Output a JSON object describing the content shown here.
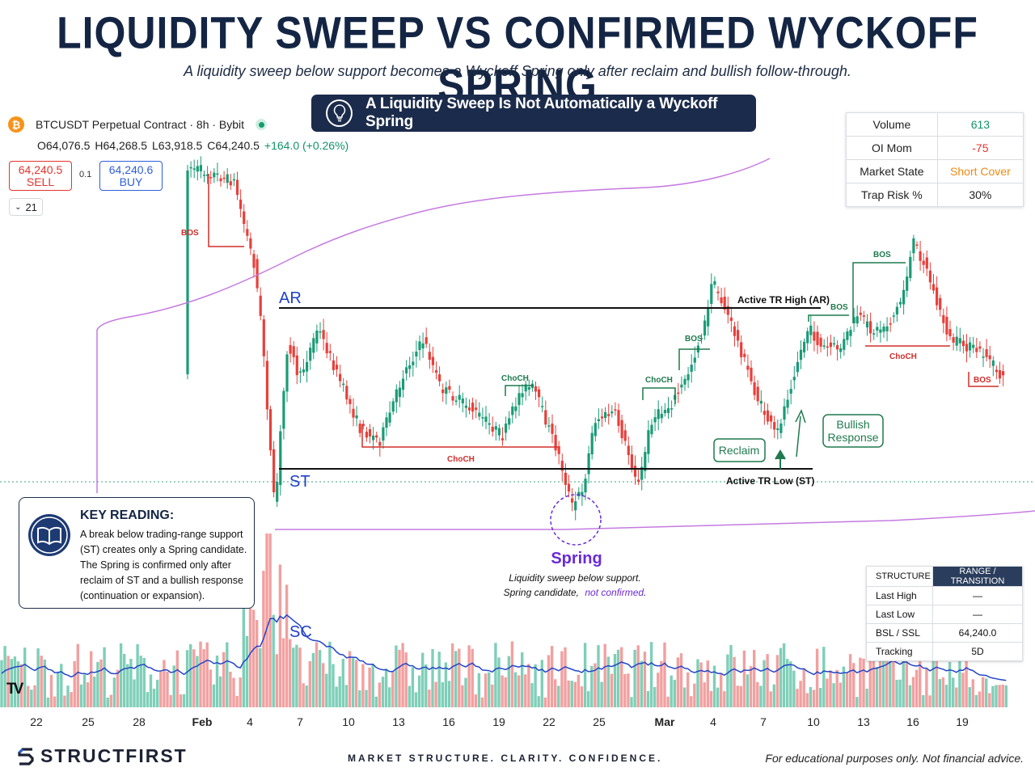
{
  "header": {
    "title": "LIQUIDITY SWEEP VS CONFIRMED WYCKOFF SPRING",
    "subtitle": "A liquidity sweep below support becomes a Wyckoff Spring only after reclaim and bullish follow-through.",
    "banner": "A Liquidity Sweep Is Not Automatically a Wyckoff Spring"
  },
  "symbol": {
    "name": "BTCUSDT Perpetual Contract · 8h · Bybit",
    "icon": "bitcoin-icon",
    "ohlc": {
      "o": "O64,076.5",
      "h": "H64,268.5",
      "l": "L63,918.5",
      "c": "C64,240.5",
      "chg": "+164.0 (+0.26%)"
    }
  },
  "trade": {
    "sell_price": "64,240.5",
    "sell_label": "SELL",
    "buy_price": "64,240.6",
    "buy_label": "BUY",
    "spread": "0.1",
    "indicator": "21"
  },
  "stats": [
    {
      "label": "Volume",
      "value": "613",
      "color": "#13936a"
    },
    {
      "label": "OI Mom",
      "value": "-75",
      "color": "#e4342f"
    },
    {
      "label": "Market State",
      "value": "Short Cover",
      "color": "#f08a12"
    },
    {
      "label": "Trap Risk %",
      "value": "30%",
      "color": "#222222"
    }
  ],
  "structure_table": {
    "headers": [
      "STRUCTURE",
      "RANGE / TRANSITION"
    ],
    "rows": [
      [
        "Last High",
        "—"
      ],
      [
        "Last Low",
        "—"
      ],
      [
        "BSL / SSL",
        "64,240.0"
      ],
      [
        "Tracking",
        "5D"
      ]
    ]
  },
  "key_reading": {
    "title": "KEY READING:",
    "body": "A break below trading-range support (ST) creates only a Spring candidate. The Spring is confirmed only after reclaim of ST and a bullish response (continuation or expansion)."
  },
  "chart_data": {
    "type": "candlestick",
    "x_ticks": [
      "22",
      "25",
      "28",
      "Feb",
      "4",
      "7",
      "10",
      "13",
      "16",
      "19",
      "22",
      "25",
      "Mar",
      "4",
      "7",
      "10",
      "13",
      "16",
      "19"
    ],
    "levels": [
      {
        "name": "Active TR High (AR)",
        "label": "AR"
      },
      {
        "name": "Active TR Low (ST)",
        "label": "ST"
      }
    ],
    "annotations": {
      "sc": "SC",
      "spring": "Spring",
      "spring_note_1": "Liquidity sweep below support.",
      "spring_note_2a": "Spring candidate,",
      "spring_note_2b": "not confirmed",
      "spring_note_2c": ".",
      "reclaim": "Reclaim",
      "bullish_1": "Bullish",
      "bullish_2": "Response",
      "bos": "BOS",
      "choch": "ChoCH"
    },
    "colors": {
      "up": "#1a9b76",
      "down": "#e8403b",
      "vol_up": "#7fcfb8",
      "vol_down": "#f2a0a0",
      "ma": "#2446c8",
      "vwap": "#c57ae0",
      "annot_green": "#1f7a4f",
      "annot_red": "#d02e2a",
      "level_blue": "#1f3fc8",
      "spring_purple": "#6a2bd6"
    }
  },
  "footer": {
    "brand": "STRUCTFIRST",
    "tagline": "MARKET STRUCTURE. CLARITY. CONFIDENCE.",
    "disclaimer": "For educational purposes only. Not financial advice.",
    "tv_logo": "TV"
  }
}
